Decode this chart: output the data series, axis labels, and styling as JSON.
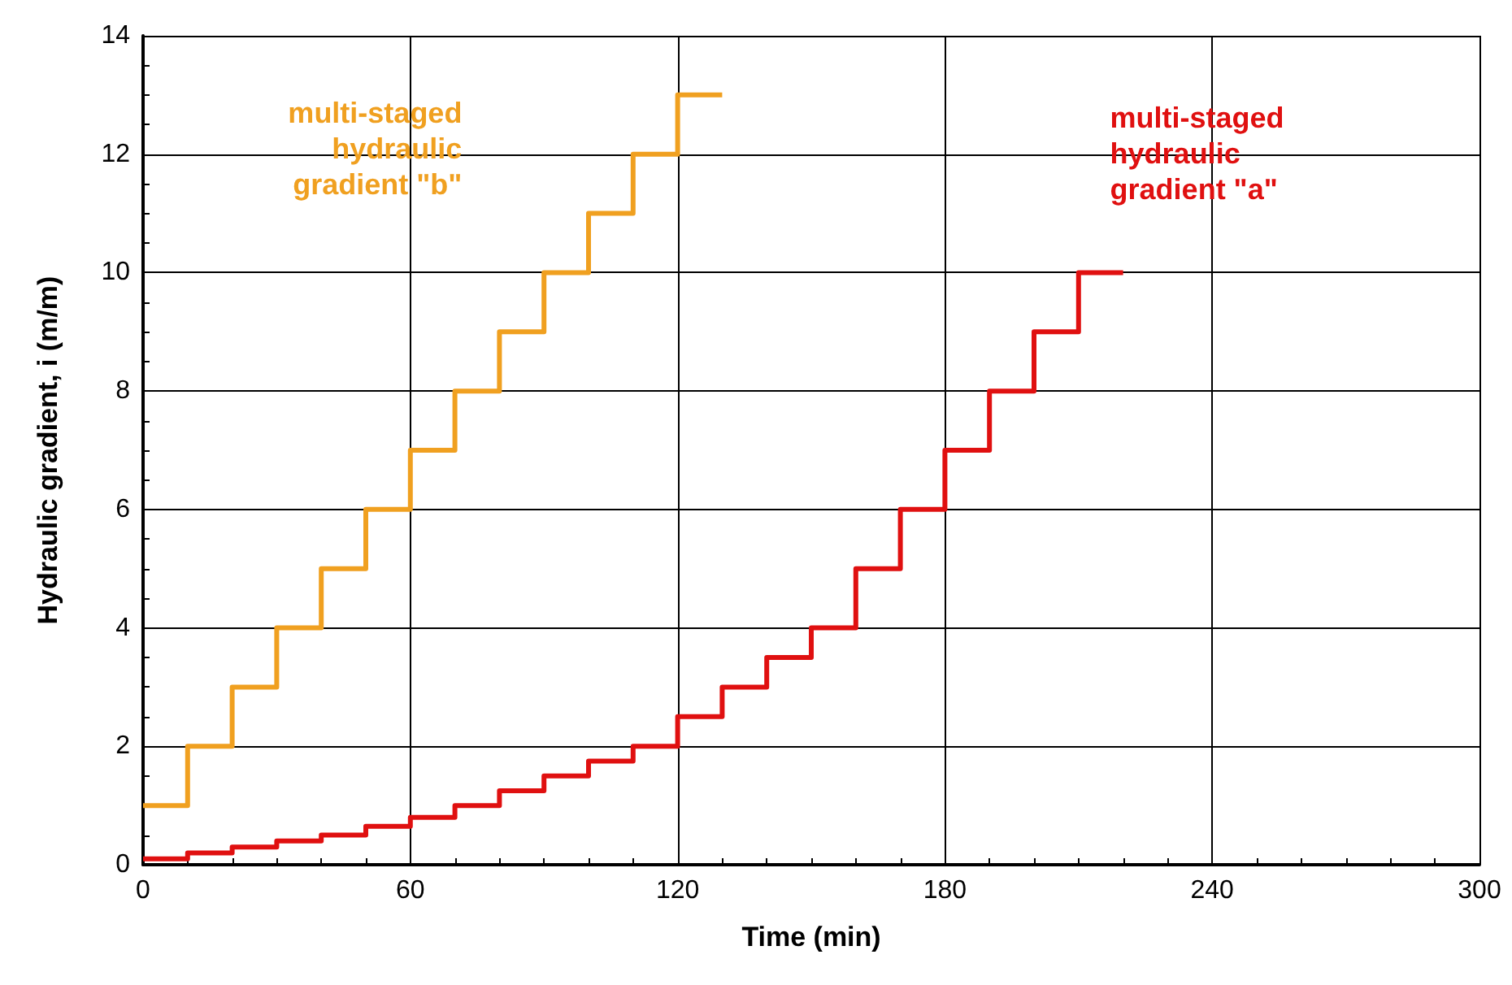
{
  "chart_data": {
    "type": "step",
    "xlabel": "Time (min)",
    "ylabel": "Hydraulic gradient, i (m/m)",
    "xlim": [
      0,
      300
    ],
    "xticks": [
      0,
      60,
      120,
      180,
      240,
      300
    ],
    "ylim": [
      0,
      14
    ],
    "yticks": [
      0,
      2,
      4,
      6,
      8,
      10,
      12,
      14
    ],
    "grid": true,
    "legend": false,
    "marker": "none",
    "line_style": "solid",
    "series": [
      {
        "name": "multi-staged\nhydraulic\ngradient \"b\"",
        "color": "#f0a020",
        "x": [
          0,
          10,
          20,
          30,
          40,
          50,
          60,
          70,
          80,
          90,
          100,
          110,
          120,
          130
        ],
        "values": [
          1,
          2,
          3,
          4,
          5,
          6,
          7,
          8,
          9,
          10,
          11,
          12,
          13,
          13
        ]
      },
      {
        "name": "multi-staged\nhydraulic\ngradient \"a\"",
        "color": "#e01010",
        "x": [
          0,
          10,
          20,
          30,
          40,
          50,
          60,
          70,
          80,
          90,
          100,
          110,
          120,
          130,
          140,
          150,
          160,
          170,
          180,
          190,
          200,
          210,
          220
        ],
        "values": [
          0.1,
          0.2,
          0.3,
          0.4,
          0.5,
          0.65,
          0.8,
          1.0,
          1.25,
          1.5,
          1.75,
          2.0,
          2.5,
          3.0,
          3.5,
          4.0,
          5.0,
          6.0,
          7.0,
          8.0,
          9.0,
          10.0,
          10.0
        ]
      }
    ]
  }
}
